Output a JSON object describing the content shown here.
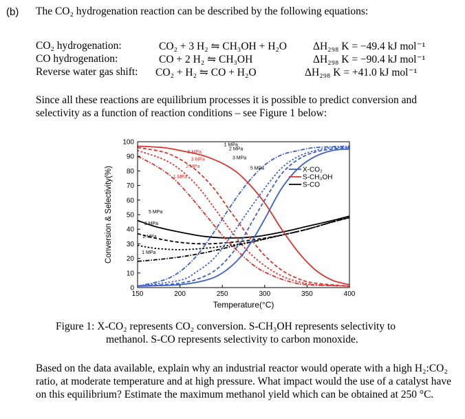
{
  "part_label": "(b)",
  "intro": "The CO₂ hydrogenation reaction can be described by the following equations:",
  "reactions": [
    {
      "name": "CO₂ hydrogenation:",
      "equation": "CO₂ + 3 H₂ ⇋ CH₃OH + H₂O",
      "enthalpy": "ΔH₂₉₈ K = −49.4 kJ mol⁻¹"
    },
    {
      "name": "CO hydrogenation:",
      "equation": "CO + 2 H₂ ⇋ CH₃OH",
      "enthalpy": "ΔH₂₉₈ K = −90.4 kJ mol⁻¹"
    },
    {
      "name": "Reverse water gas shift:",
      "equation": "CO₂ + H₂ ⇋ CO + H₂O",
      "enthalpy": "ΔH₂₉₈ K = +41.0 kJ mol⁻¹"
    }
  ],
  "since_text": "Since all these reactions are equilibrium processes it is possible to predict conversion and selectivity as a function of reaction conditions – see Figure 1 below:",
  "caption_line1": "Figure 1: X-CO₂ represents CO₂ conversion. S-CH₃OH represents selectivity to",
  "caption_line2": "methanol. S-CO represents selectivity to carbon monoxide.",
  "question": "Based on the data available, explain why an industrial reactor would operate with a high H₂:CO₂ ratio, at moderate temperature and at high pressure. What impact would the use of a catalyst have on this equilibrium? Estimate the maximum methanol yield which can be obtained at 250 °C.",
  "colors": {
    "x_co2": "#3a5fcd",
    "s_ch3oh": "#e0302a",
    "s_co": "#000000"
  },
  "chart_data": {
    "type": "line",
    "xlabel": "Temperature(°C)",
    "ylabel": "Conversion & Selectivity(%)",
    "xlim": [
      150,
      400
    ],
    "ylim": [
      0,
      100
    ],
    "xticks": [
      "150",
      "200",
      "250",
      "300",
      "350",
      "400"
    ],
    "yticks": [
      "0",
      "10",
      "20",
      "30",
      "40",
      "50",
      "60",
      "70",
      "80",
      "90",
      "100"
    ],
    "legend_position": "right",
    "legend": [
      "X-CO₂",
      "S-CH₃OH",
      "S-CO"
    ],
    "pressure_labels": [
      "1 MPa",
      "2 MPa",
      "3 MPa",
      "5 MPa"
    ],
    "series": [
      {
        "name": "X-CO₂",
        "pressure": "5 MPa",
        "x": [
          150,
          200,
          230,
          250,
          270,
          285,
          300,
          320,
          340,
          360,
          380,
          400
        ],
        "y": [
          1,
          2,
          5,
          10,
          20,
          32,
          47,
          68,
          82,
          90,
          94,
          95
        ]
      },
      {
        "name": "X-CO₂",
        "pressure": "3 MPa",
        "x": [
          150,
          200,
          230,
          250,
          270,
          285,
          300,
          320,
          340,
          360,
          380,
          400
        ],
        "y": [
          1,
          3,
          8,
          16,
          30,
          45,
          60,
          78,
          88,
          93,
          95,
          96
        ]
      },
      {
        "name": "X-CO₂",
        "pressure": "2 MPa",
        "x": [
          150,
          200,
          220,
          240,
          260,
          280,
          300,
          320,
          340,
          360,
          380,
          400
        ],
        "y": [
          1,
          5,
          11,
          20,
          35,
          52,
          68,
          82,
          90,
          94,
          96,
          96
        ]
      },
      {
        "name": "X-CO₂",
        "pressure": "1 MPa",
        "x": [
          150,
          180,
          200,
          220,
          240,
          260,
          280,
          300,
          320,
          340,
          360,
          400
        ],
        "y": [
          1,
          5,
          11,
          22,
          38,
          56,
          72,
          84,
          91,
          94,
          96,
          97
        ]
      },
      {
        "name": "S-CH₃OH",
        "pressure": "5 MPa",
        "x": [
          150,
          180,
          200,
          230,
          260,
          280,
          300,
          320,
          340,
          360,
          380,
          400
        ],
        "y": [
          97,
          96,
          94,
          90,
          82,
          72,
          58,
          40,
          24,
          12,
          5,
          2
        ]
      },
      {
        "name": "S-CH₃OH",
        "pressure": "3 MPa",
        "x": [
          150,
          180,
          200,
          220,
          240,
          260,
          280,
          300,
          320,
          340,
          360,
          400
        ],
        "y": [
          96,
          93,
          88,
          80,
          68,
          52,
          36,
          22,
          12,
          6,
          3,
          1
        ]
      },
      {
        "name": "S-CH₃OH",
        "pressure": "2 MPa",
        "x": [
          150,
          180,
          200,
          220,
          240,
          260,
          280,
          300,
          320,
          340,
          360,
          400
        ],
        "y": [
          94,
          88,
          81,
          70,
          55,
          39,
          25,
          15,
          8,
          4,
          2,
          1
        ]
      },
      {
        "name": "S-CH₃OH",
        "pressure": "1 MPa",
        "x": [
          150,
          170,
          190,
          210,
          230,
          250,
          270,
          290,
          310,
          330,
          350,
          400
        ],
        "y": [
          90,
          84,
          76,
          64,
          50,
          36,
          24,
          14,
          8,
          4,
          2,
          1
        ]
      },
      {
        "name": "S-CO",
        "pressure": "5 MPa",
        "x": [
          150,
          170,
          200,
          230,
          260,
          290,
          320,
          350,
          380,
          400
        ],
        "y": [
          46,
          42,
          38,
          35,
          34,
          35,
          38,
          42,
          46,
          49
        ]
      },
      {
        "name": "S-CO",
        "pressure": "3 MPa",
        "x": [
          150,
          170,
          200,
          230,
          260,
          290,
          320,
          350,
          380,
          400
        ],
        "y": [
          37,
          34,
          31,
          30,
          31,
          33,
          36,
          40,
          45,
          48
        ]
      },
      {
        "name": "S-CO",
        "pressure": "2 MPa",
        "x": [
          150,
          170,
          200,
          230,
          260,
          290,
          320,
          350,
          380,
          400
        ],
        "y": [
          29,
          27,
          26,
          27,
          29,
          32,
          36,
          40,
          45,
          48
        ]
      },
      {
        "name": "S-CO",
        "pressure": "1 MPa",
        "x": [
          150,
          170,
          200,
          230,
          260,
          290,
          320,
          350,
          380,
          400
        ],
        "y": [
          18,
          19,
          21,
          24,
          28,
          32,
          36,
          40,
          45,
          48
        ]
      }
    ]
  }
}
